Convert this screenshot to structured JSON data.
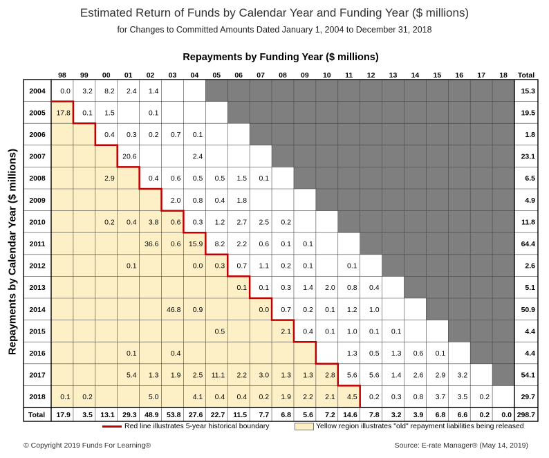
{
  "chart_data": {
    "type": "table",
    "title": "Estimated Return of Funds by Calendar Year and Funding Year ($ millions)",
    "subtitle": "for Changes to Committed Amounts Dated January 1, 2004 to December 31, 2018",
    "column_axis_label": "Repayments by Funding Year ($ millions)",
    "row_axis_label": "Repayments by Calendar Year ($ millions)",
    "columns": [
      "98",
      "99",
      "00",
      "01",
      "02",
      "03",
      "04",
      "05",
      "06",
      "07",
      "08",
      "09",
      "10",
      "11",
      "12",
      "13",
      "14",
      "15",
      "16",
      "17",
      "18"
    ],
    "total_label": "Total",
    "rows": [
      {
        "year": "2004",
        "cells": [
          "0.0",
          "3.2",
          "8.2",
          "2.4",
          "1.4",
          "",
          "",
          "",
          "",
          "",
          "",
          "",
          "",
          "",
          "",
          "",
          "",
          "",
          "",
          "",
          ""
        ],
        "total": "15.3"
      },
      {
        "year": "2005",
        "cells": [
          "17.8",
          "0.1",
          "1.5",
          "",
          "0.1",
          "",
          "",
          "",
          "",
          "",
          "",
          "",
          "",
          "",
          "",
          "",
          "",
          "",
          "",
          "",
          ""
        ],
        "total": "19.5"
      },
      {
        "year": "2006",
        "cells": [
          "",
          "",
          "0.4",
          "0.3",
          "0.2",
          "0.7",
          "0.1",
          "",
          "",
          "",
          "",
          "",
          "",
          "",
          "",
          "",
          "",
          "",
          "",
          "",
          ""
        ],
        "total": "1.8"
      },
      {
        "year": "2007",
        "cells": [
          "",
          "",
          "",
          "20.6",
          "",
          "",
          "2.4",
          "",
          "",
          "",
          "",
          "",
          "",
          "",
          "",
          "",
          "",
          "",
          "",
          "",
          ""
        ],
        "total": "23.1"
      },
      {
        "year": "2008",
        "cells": [
          "",
          "",
          "2.9",
          "",
          "0.4",
          "0.6",
          "0.5",
          "0.5",
          "1.5",
          "0.1",
          "",
          "",
          "",
          "",
          "",
          "",
          "",
          "",
          "",
          "",
          ""
        ],
        "total": "6.5"
      },
      {
        "year": "2009",
        "cells": [
          "",
          "",
          "",
          "",
          "",
          "2.0",
          "0.8",
          "0.4",
          "1.8",
          "",
          "",
          "",
          "",
          "",
          "",
          "",
          "",
          "",
          "",
          "",
          ""
        ],
        "total": "4.9"
      },
      {
        "year": "2010",
        "cells": [
          "",
          "",
          "0.2",
          "0.4",
          "3.8",
          "0.6",
          "0.3",
          "1.2",
          "2.7",
          "2.5",
          "0.2",
          "",
          "",
          "",
          "",
          "",
          "",
          "",
          "",
          "",
          ""
        ],
        "total": "11.8"
      },
      {
        "year": "2011",
        "cells": [
          "",
          "",
          "",
          "",
          "36.6",
          "0.6",
          "15.9",
          "8.2",
          "2.2",
          "0.6",
          "0.1",
          "0.1",
          "",
          "",
          "",
          "",
          "",
          "",
          "",
          "",
          ""
        ],
        "total": "64.4"
      },
      {
        "year": "2012",
        "cells": [
          "",
          "",
          "",
          "0.1",
          "",
          "",
          "0.0",
          "0.3",
          "0.7",
          "1.1",
          "0.2",
          "0.1",
          "",
          "0.1",
          "",
          "",
          "",
          "",
          "",
          "",
          ""
        ],
        "total": "2.6"
      },
      {
        "year": "2013",
        "cells": [
          "",
          "",
          "",
          "",
          "",
          "",
          "",
          "",
          "0.1",
          "0.1",
          "0.3",
          "1.4",
          "2.0",
          "0.8",
          "0.4",
          "",
          "",
          "",
          "",
          "",
          ""
        ],
        "total": "5.1"
      },
      {
        "year": "2014",
        "cells": [
          "",
          "",
          "",
          "",
          "",
          "46.8",
          "0.9",
          "",
          "",
          "0.0",
          "0.7",
          "0.2",
          "0.1",
          "1.2",
          "1.0",
          "",
          "",
          "",
          "",
          "",
          ""
        ],
        "total": "50.9"
      },
      {
        "year": "2015",
        "cells": [
          "",
          "",
          "",
          "",
          "",
          "",
          "",
          "0.5",
          "",
          "",
          "2.1",
          "0.4",
          "0.1",
          "1.0",
          "0.1",
          "0.1",
          "",
          "",
          "",
          "",
          ""
        ],
        "total": "4.4"
      },
      {
        "year": "2016",
        "cells": [
          "",
          "",
          "",
          "0.1",
          "",
          "0.4",
          "",
          "",
          "",
          "",
          "",
          "",
          "",
          "1.3",
          "0.5",
          "1.3",
          "0.6",
          "0.1",
          "",
          "",
          ""
        ],
        "total": "4.4"
      },
      {
        "year": "2017",
        "cells": [
          "",
          "",
          "",
          "5.4",
          "1.3",
          "1.9",
          "2.5",
          "11.1",
          "2.2",
          "3.0",
          "1.3",
          "1.3",
          "2.8",
          "5.6",
          "5.6",
          "1.4",
          "2.6",
          "2.9",
          "3.2",
          "",
          ""
        ],
        "total": "54.1"
      },
      {
        "year": "2018",
        "cells": [
          "0.1",
          "0.2",
          "",
          "",
          "5.0",
          "",
          "4.1",
          "0.4",
          "0.4",
          "0.2",
          "1.9",
          "2.2",
          "2.1",
          "4.5",
          "0.2",
          "0.3",
          "0.8",
          "3.7",
          "3.5",
          "0.2",
          ""
        ],
        "total": "29.7"
      }
    ],
    "column_totals": [
      "17.9",
      "3.5",
      "13.1",
      "29.3",
      "48.9",
      "53.8",
      "27.6",
      "22.7",
      "11.5",
      "7.7",
      "6.8",
      "5.6",
      "7.2",
      "14.6",
      "7.8",
      "3.2",
      "3.9",
      "6.8",
      "6.6",
      "0.2",
      "0.0"
    ],
    "grand_total": "298.7",
    "yellow_region_last_col_index": [
      -1,
      0,
      1,
      2,
      3,
      4,
      5,
      6,
      7,
      8,
      9,
      10,
      11,
      12,
      13
    ],
    "gray_region_first_col_index": [
      7,
      8,
      9,
      10,
      11,
      12,
      13,
      14,
      15,
      16,
      17,
      18,
      19,
      20,
      21
    ],
    "colors": {
      "yellow": "#fdf0c7",
      "gray": "#7f7f7f",
      "red_line": "#c00000",
      "grid": "#000000"
    }
  },
  "legend": {
    "red_line_text": "Red line illustrates 5-year historical boundary",
    "yellow_text": "Yellow region illustrates \"old\" repayment liabilities being released"
  },
  "footer": {
    "copyright": "© Copyright 2019 Funds For Learning®",
    "source": "Source: E-rate Manager® (May 14, 2019)"
  }
}
